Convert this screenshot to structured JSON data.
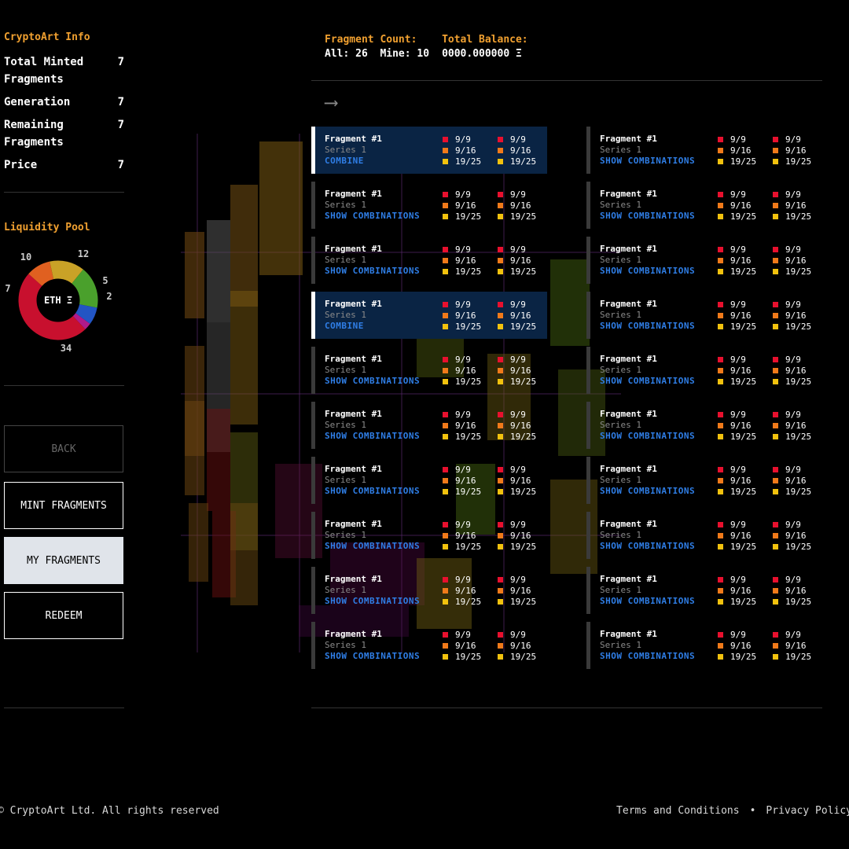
{
  "sidebar": {
    "info_title": "CryptoArt Info",
    "info": [
      {
        "label": "Total Minted Fragments",
        "value": "7"
      },
      {
        "label": "Generation",
        "value": "7"
      },
      {
        "label": "Remaining Fragments",
        "value": "7"
      },
      {
        "label": "Price",
        "value": "7"
      }
    ],
    "pool_title": "Liquidity Pool",
    "pool_center": "ETH Ξ",
    "pool_segments": [
      {
        "value": 34,
        "color": "#c8102e"
      },
      {
        "value": 7,
        "color": "#e06020"
      },
      {
        "value": 10,
        "color": "#c9a227"
      },
      {
        "value": 12,
        "color": "#4aa02c"
      },
      {
        "value": 5,
        "color": "#2255c4"
      },
      {
        "value": 2,
        "color": "#b01a8a"
      }
    ],
    "pool_labels": {
      "a": "10",
      "b": "12",
      "c": "5",
      "d": "2",
      "e": "34",
      "f": "7"
    },
    "buttons": {
      "back": "BACK",
      "mint": "MINT FRAGMENTS",
      "my": "MY FRAGMENTS",
      "redeem": "REDEEM"
    }
  },
  "header": {
    "count_label": "Fragment Count:",
    "count_value": "All: 26  Mine: 10",
    "balance_label": "Total Balance:",
    "balance_value": "0000.000000 Ξ",
    "arrow": "⟶"
  },
  "colors": {
    "red": "#e8102e",
    "orange": "#f07a1a",
    "yellow": "#f2c20e"
  },
  "cards": [
    {
      "name": "Fragment #1",
      "series": "Series 1",
      "action": "COMBINE",
      "selected": true,
      "stats": [
        "9/9",
        "9/16",
        "19/25"
      ]
    },
    {
      "name": "Fragment #1",
      "series": "Series 1",
      "action": "SHOW COMBINATIONS",
      "selected": false,
      "stats": [
        "9/9",
        "9/16",
        "19/25"
      ]
    },
    {
      "name": "Fragment #1",
      "series": "Series 1",
      "action": "SHOW COMBINATIONS",
      "selected": false,
      "stats": [
        "9/9",
        "9/16",
        "19/25"
      ]
    },
    {
      "name": "Fragment #1",
      "series": "Series 1",
      "action": "SHOW COMBINATIONS",
      "selected": false,
      "stats": [
        "9/9",
        "9/16",
        "19/25"
      ]
    },
    {
      "name": "Fragment #1",
      "series": "Series 1",
      "action": "SHOW COMBINATIONS",
      "selected": false,
      "stats": [
        "9/9",
        "9/16",
        "19/25"
      ]
    },
    {
      "name": "Fragment #1",
      "series": "Series 1",
      "action": "SHOW COMBINATIONS",
      "selected": false,
      "stats": [
        "9/9",
        "9/16",
        "19/25"
      ]
    },
    {
      "name": "Fragment #1",
      "series": "Series 1",
      "action": "COMBINE",
      "selected": true,
      "stats": [
        "9/9",
        "9/16",
        "19/25"
      ]
    },
    {
      "name": "Fragment #1",
      "series": "Series 1",
      "action": "SHOW COMBINATIONS",
      "selected": false,
      "stats": [
        "9/9",
        "9/16",
        "19/25"
      ]
    },
    {
      "name": "Fragment #1",
      "series": "Series 1",
      "action": "SHOW COMBINATIONS",
      "selected": false,
      "stats": [
        "9/9",
        "9/16",
        "19/25"
      ]
    },
    {
      "name": "Fragment #1",
      "series": "Series 1",
      "action": "SHOW COMBINATIONS",
      "selected": false,
      "stats": [
        "9/9",
        "9/16",
        "19/25"
      ]
    },
    {
      "name": "Fragment #1",
      "series": "Series 1",
      "action": "SHOW COMBINATIONS",
      "selected": false,
      "stats": [
        "9/9",
        "9/16",
        "19/25"
      ]
    },
    {
      "name": "Fragment #1",
      "series": "Series 1",
      "action": "SHOW COMBINATIONS",
      "selected": false,
      "stats": [
        "9/9",
        "9/16",
        "19/25"
      ]
    },
    {
      "name": "Fragment #1",
      "series": "Series 1",
      "action": "SHOW COMBINATIONS",
      "selected": false,
      "stats": [
        "9/9",
        "9/16",
        "19/25"
      ]
    },
    {
      "name": "Fragment #1",
      "series": "Series 1",
      "action": "SHOW COMBINATIONS",
      "selected": false,
      "stats": [
        "9/9",
        "9/16",
        "19/25"
      ]
    },
    {
      "name": "Fragment #1",
      "series": "Series 1",
      "action": "SHOW COMBINATIONS",
      "selected": false,
      "stats": [
        "9/9",
        "9/16",
        "19/25"
      ]
    },
    {
      "name": "Fragment #1",
      "series": "Series 1",
      "action": "SHOW COMBINATIONS",
      "selected": false,
      "stats": [
        "9/9",
        "9/16",
        "19/25"
      ]
    },
    {
      "name": "Fragment #1",
      "series": "Series 1",
      "action": "SHOW COMBINATIONS",
      "selected": false,
      "stats": [
        "9/9",
        "9/16",
        "19/25"
      ]
    },
    {
      "name": "Fragment #1",
      "series": "Series 1",
      "action": "SHOW COMBINATIONS",
      "selected": false,
      "stats": [
        "9/9",
        "9/16",
        "19/25"
      ]
    },
    {
      "name": "Fragment #1",
      "series": "Series 1",
      "action": "SHOW COMBINATIONS",
      "selected": false,
      "stats": [
        "9/9",
        "9/16",
        "19/25"
      ]
    },
    {
      "name": "Fragment #1",
      "series": "Series 1",
      "action": "SHOW COMBINATIONS",
      "selected": false,
      "stats": [
        "9/9",
        "9/16",
        "19/25"
      ]
    }
  ],
  "footer": {
    "copyright": "© CryptoArt Ltd. All rights reserved",
    "terms": "Terms and Conditions",
    "separator": "•",
    "privacy": "Privacy Policy"
  }
}
